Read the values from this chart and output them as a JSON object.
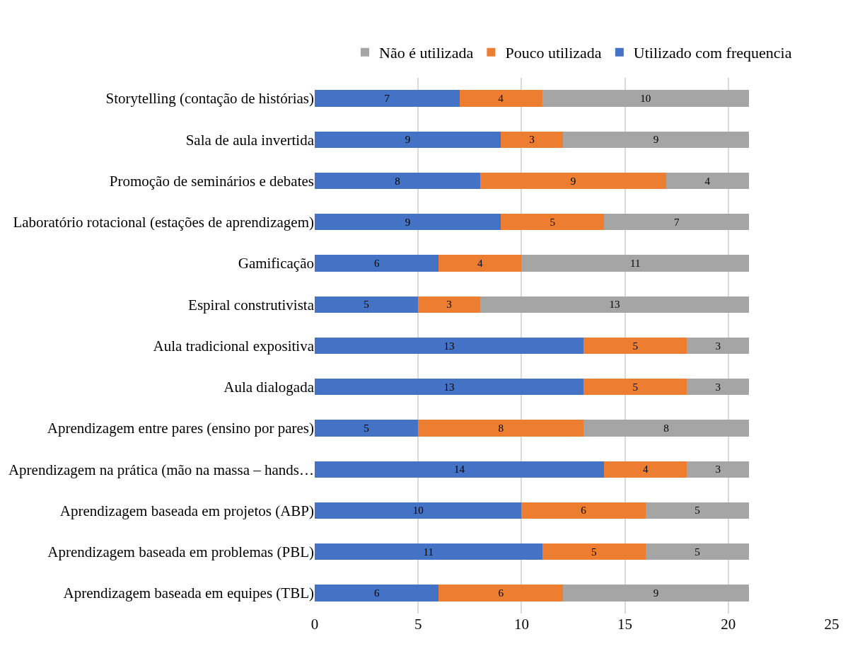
{
  "chart_data": {
    "type": "bar",
    "orientation": "horizontal",
    "stacked": true,
    "categories": [
      "Storytelling (contação de histórias)",
      "Sala de aula invertida",
      "Promoção de seminários e debates",
      "Laboratório rotacional (estações de aprendizagem)",
      "Gamificação",
      "Espiral construtivista",
      "Aula tradicional expositiva",
      "Aula dialogada",
      "Aprendizagem entre pares (ensino por pares)",
      "Aprendizagem na prática (mão na massa – hands…",
      "Aprendizagem baseada em projetos (ABP)",
      "Aprendizagem baseada em problemas (PBL)",
      "Aprendizagem baseada em equipes (TBL)"
    ],
    "series": [
      {
        "name": "Utilizado com frequencia",
        "color": "#4472c4",
        "values": [
          7,
          9,
          8,
          9,
          6,
          5,
          13,
          13,
          5,
          14,
          10,
          11,
          6
        ]
      },
      {
        "name": "Pouco utilizada",
        "color": "#ed7d31",
        "values": [
          4,
          3,
          9,
          5,
          4,
          3,
          5,
          5,
          8,
          4,
          6,
          5,
          6
        ]
      },
      {
        "name": "Não é utilizada",
        "color": "#a5a5a5",
        "values": [
          10,
          9,
          4,
          7,
          11,
          13,
          3,
          3,
          8,
          3,
          5,
          5,
          9
        ]
      }
    ],
    "xlim": [
      0,
      25
    ],
    "xticks": [
      0,
      5,
      10,
      15,
      20,
      25
    ],
    "grid": "x",
    "legend": "top",
    "data_labels": true
  }
}
